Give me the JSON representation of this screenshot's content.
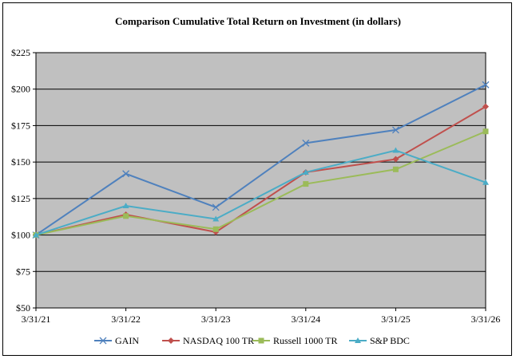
{
  "chart_data": {
    "type": "line",
    "title": "Comparison Cumulative Total Return on Investment (in dollars)",
    "xlabel": "",
    "ylabel": "",
    "categories": [
      "3/31/21",
      "3/31/22",
      "3/31/23",
      "3/31/24",
      "3/31/25",
      "3/31/26"
    ],
    "y_ticks": [
      "$50",
      "$75",
      "$100",
      "$125",
      "$150",
      "$175",
      "$200",
      "$225"
    ],
    "ylim": [
      50,
      225
    ],
    "grid": true,
    "legend_position": "bottom",
    "plot_background": "#c0c0c0",
    "series": [
      {
        "name": "GAIN",
        "color": "#4f81bd",
        "marker": "x",
        "values": [
          100,
          142,
          119,
          163,
          172,
          203
        ]
      },
      {
        "name": "NASDAQ 100 TR",
        "color": "#c0504d",
        "marker": "diamond",
        "values": [
          100,
          114,
          102,
          143,
          152,
          188
        ]
      },
      {
        "name": "Russell 1000 TR",
        "color": "#9bbb59",
        "marker": "square",
        "values": [
          100,
          113,
          104,
          135,
          145,
          171
        ]
      },
      {
        "name": "S&P BDC",
        "color": "#4bacc6",
        "marker": "triangle",
        "values": [
          100,
          120,
          111,
          143,
          158,
          136
        ]
      }
    ]
  }
}
